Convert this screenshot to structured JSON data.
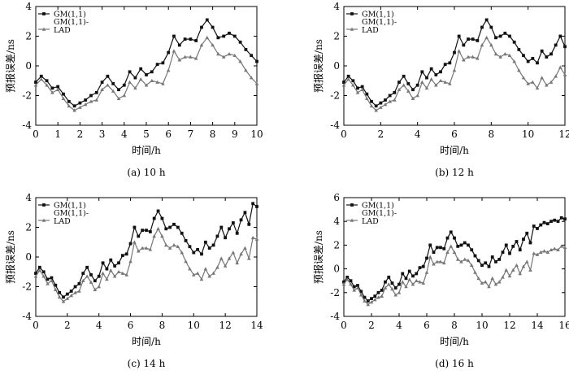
{
  "chart_data": [
    {
      "type": "line",
      "caption": "(a) 10 h",
      "xlabel": "时间/h",
      "ylabel": "预报误差/ns",
      "xlim": [
        0,
        10
      ],
      "ylim": [
        -4,
        4
      ],
      "xticks": [
        0,
        1,
        2,
        3,
        4,
        5,
        6,
        7,
        8,
        9,
        10
      ],
      "yticks": [
        -4,
        -2,
        0,
        2,
        4
      ],
      "grid": false,
      "legend_position": "top-left",
      "series": [
        {
          "name": "GM(1,1)",
          "color": "#111111",
          "marker": "square",
          "x": [
            0,
            0.25,
            0.5,
            0.75,
            1,
            1.25,
            1.5,
            1.75,
            2,
            2.25,
            2.5,
            2.75,
            3,
            3.25,
            3.5,
            3.75,
            4,
            4.25,
            4.5,
            4.75,
            5,
            5.25,
            5.5,
            5.75,
            6,
            6.25,
            6.5,
            6.75,
            7,
            7.25,
            7.5,
            7.75,
            8,
            8.25,
            8.5,
            8.75,
            9,
            9.25,
            9.5,
            9.75,
            10
          ],
          "y": [
            -1.1,
            -0.7,
            -1.0,
            -1.5,
            -1.4,
            -1.9,
            -2.4,
            -2.7,
            -2.5,
            -2.3,
            -2.0,
            -1.8,
            -1.1,
            -0.7,
            -1.2,
            -1.6,
            -1.3,
            -0.4,
            -0.8,
            -0.2,
            -0.6,
            -0.4,
            0.1,
            0.2,
            0.9,
            2.0,
            1.4,
            1.8,
            1.8,
            1.7,
            2.6,
            3.1,
            2.6,
            1.9,
            2.0,
            2.2,
            2.0,
            1.6,
            1.1,
            0.7,
            0.3
          ]
        },
        {
          "name": "GM(1,1)-LAD",
          "color": "#777777",
          "marker": "triangle",
          "x": [
            0,
            0.25,
            0.5,
            0.75,
            1,
            1.25,
            1.5,
            1.75,
            2,
            2.25,
            2.5,
            2.75,
            3,
            3.25,
            3.5,
            3.75,
            4,
            4.25,
            4.5,
            4.75,
            5,
            5.25,
            5.5,
            5.75,
            6,
            6.25,
            6.5,
            6.75,
            7,
            7.25,
            7.5,
            7.75,
            8,
            8.25,
            8.5,
            8.75,
            9,
            9.25,
            9.5,
            9.75,
            10
          ],
          "y": [
            -1.3,
            -0.9,
            -1.3,
            -1.8,
            -1.6,
            -2.2,
            -2.7,
            -3.0,
            -2.8,
            -2.6,
            -2.4,
            -2.3,
            -1.6,
            -1.3,
            -1.7,
            -2.2,
            -2.0,
            -1.1,
            -1.5,
            -0.9,
            -1.3,
            -1.0,
            -1.1,
            -1.2,
            -0.3,
            1.0,
            0.4,
            0.6,
            0.6,
            0.5,
            1.4,
            1.9,
            1.4,
            0.8,
            0.6,
            0.8,
            0.7,
            0.3,
            -0.3,
            -0.8,
            -1.2
          ]
        }
      ]
    },
    {
      "type": "line",
      "caption": "(b) 12 h",
      "xlabel": "时间/h",
      "ylabel": "预报误差/ns",
      "xlim": [
        0,
        12
      ],
      "ylim": [
        -4,
        4
      ],
      "xticks": [
        0,
        2,
        4,
        6,
        8,
        10,
        12
      ],
      "yticks": [
        -4,
        -2,
        0,
        2,
        4
      ],
      "grid": false,
      "legend_position": "top-left",
      "series": [
        {
          "name": "GM(1,1)",
          "color": "#111111",
          "marker": "square",
          "x": [
            0,
            0.25,
            0.5,
            0.75,
            1,
            1.25,
            1.5,
            1.75,
            2,
            2.25,
            2.5,
            2.75,
            3,
            3.25,
            3.5,
            3.75,
            4,
            4.25,
            4.5,
            4.75,
            5,
            5.25,
            5.5,
            5.75,
            6,
            6.25,
            6.5,
            6.75,
            7,
            7.25,
            7.5,
            7.75,
            8,
            8.25,
            8.5,
            8.75,
            9,
            9.25,
            9.5,
            9.75,
            10,
            10.25,
            10.5,
            10.75,
            11,
            11.25,
            11.5,
            11.75,
            12
          ],
          "y": [
            -1.1,
            -0.7,
            -1.0,
            -1.5,
            -1.4,
            -1.9,
            -2.4,
            -2.7,
            -2.5,
            -2.3,
            -2.0,
            -1.8,
            -1.1,
            -0.7,
            -1.2,
            -1.6,
            -1.3,
            -0.4,
            -0.8,
            -0.2,
            -0.6,
            -0.4,
            0.1,
            0.2,
            0.9,
            2.0,
            1.4,
            1.8,
            1.8,
            1.7,
            2.6,
            3.1,
            2.6,
            1.9,
            2.0,
            2.2,
            2.0,
            1.6,
            1.1,
            0.7,
            0.3,
            0.5,
            0.2,
            1.0,
            0.6,
            0.8,
            1.4,
            2.0,
            1.3
          ]
        },
        {
          "name": "GM(1,1)-LAD",
          "color": "#777777",
          "marker": "triangle",
          "x": [
            0,
            0.25,
            0.5,
            0.75,
            1,
            1.25,
            1.5,
            1.75,
            2,
            2.25,
            2.5,
            2.75,
            3,
            3.25,
            3.5,
            3.75,
            4,
            4.25,
            4.5,
            4.75,
            5,
            5.25,
            5.5,
            5.75,
            6,
            6.25,
            6.5,
            6.75,
            7,
            7.25,
            7.5,
            7.75,
            8,
            8.25,
            8.5,
            8.75,
            9,
            9.25,
            9.5,
            9.75,
            10,
            10.25,
            10.5,
            10.75,
            11,
            11.25,
            11.5,
            11.75,
            12
          ],
          "y": [
            -1.3,
            -0.9,
            -1.3,
            -1.8,
            -1.6,
            -2.2,
            -2.7,
            -3.0,
            -2.8,
            -2.6,
            -2.4,
            -2.3,
            -1.6,
            -1.3,
            -1.7,
            -2.2,
            -2.0,
            -1.1,
            -1.5,
            -0.9,
            -1.3,
            -1.0,
            -1.1,
            -1.2,
            -0.3,
            1.0,
            0.4,
            0.6,
            0.6,
            0.5,
            1.4,
            1.9,
            1.4,
            0.8,
            0.6,
            0.8,
            0.7,
            0.3,
            -0.3,
            -0.8,
            -1.2,
            -1.1,
            -1.5,
            -0.8,
            -1.3,
            -1.1,
            -0.7,
            -0.1,
            -0.6
          ]
        }
      ]
    },
    {
      "type": "line",
      "caption": "(c) 14 h",
      "xlabel": "时间/h",
      "ylabel": "预报误差/ns",
      "xlim": [
        0,
        14
      ],
      "ylim": [
        -4,
        4
      ],
      "xticks": [
        0,
        2,
        4,
        6,
        8,
        10,
        12,
        14
      ],
      "yticks": [
        -4,
        -2,
        0,
        2,
        4
      ],
      "grid": false,
      "legend_position": "top-left",
      "series": [
        {
          "name": "GM(1,1)",
          "color": "#111111",
          "marker": "square",
          "x": [
            0,
            0.25,
            0.5,
            0.75,
            1,
            1.25,
            1.5,
            1.75,
            2,
            2.25,
            2.5,
            2.75,
            3,
            3.25,
            3.5,
            3.75,
            4,
            4.25,
            4.5,
            4.75,
            5,
            5.25,
            5.5,
            5.75,
            6,
            6.25,
            6.5,
            6.75,
            7,
            7.25,
            7.5,
            7.75,
            8,
            8.25,
            8.5,
            8.75,
            9,
            9.25,
            9.5,
            9.75,
            10,
            10.25,
            10.5,
            10.75,
            11,
            11.25,
            11.5,
            11.75,
            12,
            12.25,
            12.5,
            12.75,
            13,
            13.25,
            13.5,
            13.75,
            14
          ],
          "y": [
            -1.1,
            -0.7,
            -1.0,
            -1.5,
            -1.4,
            -1.9,
            -2.4,
            -2.7,
            -2.5,
            -2.3,
            -2.0,
            -1.8,
            -1.1,
            -0.7,
            -1.2,
            -1.6,
            -1.3,
            -0.4,
            -0.8,
            -0.2,
            -0.6,
            -0.4,
            0.1,
            0.2,
            0.9,
            2.0,
            1.4,
            1.8,
            1.8,
            1.7,
            2.6,
            3.1,
            2.6,
            1.9,
            2.0,
            2.2,
            2.0,
            1.6,
            1.1,
            0.7,
            0.3,
            0.5,
            0.2,
            1.0,
            0.6,
            0.8,
            1.4,
            2.0,
            1.3,
            1.9,
            2.3,
            1.6,
            2.5,
            3.0,
            2.2,
            3.6,
            3.4
          ]
        },
        {
          "name": "GM(1,1)-LAD",
          "color": "#777777",
          "marker": "triangle",
          "x": [
            0,
            0.25,
            0.5,
            0.75,
            1,
            1.25,
            1.5,
            1.75,
            2,
            2.25,
            2.5,
            2.75,
            3,
            3.25,
            3.5,
            3.75,
            4,
            4.25,
            4.5,
            4.75,
            5,
            5.25,
            5.5,
            5.75,
            6,
            6.25,
            6.5,
            6.75,
            7,
            7.25,
            7.5,
            7.75,
            8,
            8.25,
            8.5,
            8.75,
            9,
            9.25,
            9.5,
            9.75,
            10,
            10.25,
            10.5,
            10.75,
            11,
            11.25,
            11.5,
            11.75,
            12,
            12.25,
            12.5,
            12.75,
            13,
            13.25,
            13.5,
            13.75,
            14
          ],
          "y": [
            -1.3,
            -0.9,
            -1.3,
            -1.8,
            -1.6,
            -2.2,
            -2.7,
            -3.0,
            -2.8,
            -2.6,
            -2.4,
            -2.3,
            -1.6,
            -1.3,
            -1.7,
            -2.2,
            -2.0,
            -1.1,
            -1.5,
            -0.9,
            -1.3,
            -1.0,
            -1.1,
            -1.2,
            -0.3,
            1.0,
            0.4,
            0.6,
            0.6,
            0.5,
            1.4,
            1.9,
            1.4,
            0.8,
            0.6,
            0.8,
            0.7,
            0.3,
            -0.3,
            -0.8,
            -1.2,
            -1.1,
            -1.5,
            -0.8,
            -1.3,
            -1.1,
            -0.7,
            -0.1,
            -0.6,
            -0.1,
            0.3,
            -0.4,
            0.2,
            0.6,
            -0.1,
            1.3,
            1.2
          ]
        }
      ]
    },
    {
      "type": "line",
      "caption": "(d) 16 h",
      "xlabel": "时间/h",
      "ylabel": "预报误差/ns",
      "xlim": [
        0,
        16
      ],
      "ylim": [
        -4,
        6
      ],
      "xticks": [
        0,
        2,
        4,
        6,
        8,
        10,
        12,
        14,
        16
      ],
      "yticks": [
        -4,
        -2,
        0,
        2,
        4,
        6
      ],
      "grid": false,
      "legend_position": "top-left",
      "series": [
        {
          "name": "GM(1,1)",
          "color": "#111111",
          "marker": "square",
          "x": [
            0,
            0.25,
            0.5,
            0.75,
            1,
            1.25,
            1.5,
            1.75,
            2,
            2.25,
            2.5,
            2.75,
            3,
            3.25,
            3.5,
            3.75,
            4,
            4.25,
            4.5,
            4.75,
            5,
            5.25,
            5.5,
            5.75,
            6,
            6.25,
            6.5,
            6.75,
            7,
            7.25,
            7.5,
            7.75,
            8,
            8.25,
            8.5,
            8.75,
            9,
            9.25,
            9.5,
            9.75,
            10,
            10.25,
            10.5,
            10.75,
            11,
            11.25,
            11.5,
            11.75,
            12,
            12.25,
            12.5,
            12.75,
            13,
            13.25,
            13.5,
            13.75,
            14,
            14.25,
            14.5,
            14.75,
            15,
            15.25,
            15.5,
            15.75,
            16
          ],
          "y": [
            -1.1,
            -0.7,
            -1.0,
            -1.5,
            -1.4,
            -1.9,
            -2.4,
            -2.7,
            -2.5,
            -2.3,
            -2.0,
            -1.8,
            -1.1,
            -0.7,
            -1.2,
            -1.6,
            -1.3,
            -0.4,
            -0.8,
            -0.2,
            -0.6,
            -0.4,
            0.1,
            0.2,
            0.9,
            2.0,
            1.4,
            1.8,
            1.8,
            1.7,
            2.6,
            3.1,
            2.6,
            1.9,
            2.0,
            2.2,
            2.0,
            1.6,
            1.1,
            0.7,
            0.3,
            0.5,
            0.2,
            1.0,
            0.6,
            0.8,
            1.4,
            2.0,
            1.3,
            1.9,
            2.3,
            1.6,
            2.5,
            3.0,
            2.2,
            3.6,
            3.4,
            3.7,
            3.9,
            3.8,
            4.0,
            4.1,
            4.0,
            4.3,
            4.2
          ]
        },
        {
          "name": "GM(1,1)-LAD",
          "color": "#777777",
          "marker": "triangle",
          "x": [
            0,
            0.25,
            0.5,
            0.75,
            1,
            1.25,
            1.5,
            1.75,
            2,
            2.25,
            2.5,
            2.75,
            3,
            3.25,
            3.5,
            3.75,
            4,
            4.25,
            4.5,
            4.75,
            5,
            5.25,
            5.5,
            5.75,
            6,
            6.25,
            6.5,
            6.75,
            7,
            7.25,
            7.5,
            7.75,
            8,
            8.25,
            8.5,
            8.75,
            9,
            9.25,
            9.5,
            9.75,
            10,
            10.25,
            10.5,
            10.75,
            11,
            11.25,
            11.5,
            11.75,
            12,
            12.25,
            12.5,
            12.75,
            13,
            13.25,
            13.5,
            13.75,
            14,
            14.25,
            14.5,
            14.75,
            15,
            15.25,
            15.5,
            15.75,
            16
          ],
          "y": [
            -1.3,
            -0.9,
            -1.3,
            -1.8,
            -1.6,
            -2.2,
            -2.7,
            -3.0,
            -2.8,
            -2.6,
            -2.4,
            -2.3,
            -1.6,
            -1.3,
            -1.7,
            -2.2,
            -2.0,
            -1.1,
            -1.5,
            -0.9,
            -1.3,
            -1.0,
            -1.1,
            -1.2,
            -0.3,
            1.0,
            0.4,
            0.6,
            0.6,
            0.5,
            1.4,
            1.9,
            1.4,
            0.8,
            0.6,
            0.8,
            0.7,
            0.3,
            -0.3,
            -0.8,
            -1.2,
            -1.1,
            -1.5,
            -0.8,
            -1.3,
            -1.1,
            -0.7,
            -0.1,
            -0.6,
            -0.1,
            0.3,
            -0.4,
            0.2,
            0.6,
            -0.1,
            1.3,
            1.2,
            1.4,
            1.5,
            1.4,
            1.6,
            1.7,
            1.6,
            1.9,
            1.8
          ]
        }
      ]
    }
  ]
}
